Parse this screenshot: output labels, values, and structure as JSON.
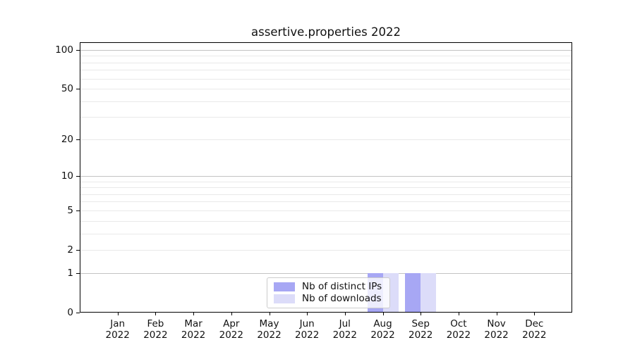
{
  "chart_data": {
    "type": "bar",
    "title": "assertive.properties 2022",
    "xlabel": "",
    "ylabel": "",
    "categories": [
      "Jan 2022",
      "Feb 2022",
      "Mar 2022",
      "Apr 2022",
      "May 2022",
      "Jun 2022",
      "Jul 2022",
      "Aug 2022",
      "Sep 2022",
      "Oct 2022",
      "Nov 2022",
      "Dec 2022"
    ],
    "series": [
      {
        "name": "Nb of distinct IPs",
        "color": "#a7a7f4",
        "values": [
          0,
          0,
          0,
          0,
          0,
          0,
          0,
          1,
          1,
          0,
          0,
          0
        ]
      },
      {
        "name": "Nb of downloads",
        "color": "#dcdcf9",
        "values": [
          0,
          0,
          0,
          0,
          0,
          0,
          0,
          1,
          1,
          0,
          0,
          0
        ]
      }
    ],
    "yscale": "log1p",
    "ylim": [
      0,
      100
    ],
    "yticks": [
      0,
      1,
      2,
      5,
      10,
      20,
      50,
      100
    ],
    "grid_major": [
      1,
      10,
      100
    ],
    "grid_minor": [
      2,
      3,
      4,
      5,
      6,
      7,
      8,
      9,
      20,
      30,
      40,
      50,
      60,
      70,
      80,
      90
    ],
    "legend_position": "lower center inside",
    "colors": {
      "grid_major": "#c3c3c3",
      "grid_minor": "#e9e9e9",
      "axis": "#000000",
      "text": "#111111"
    }
  }
}
